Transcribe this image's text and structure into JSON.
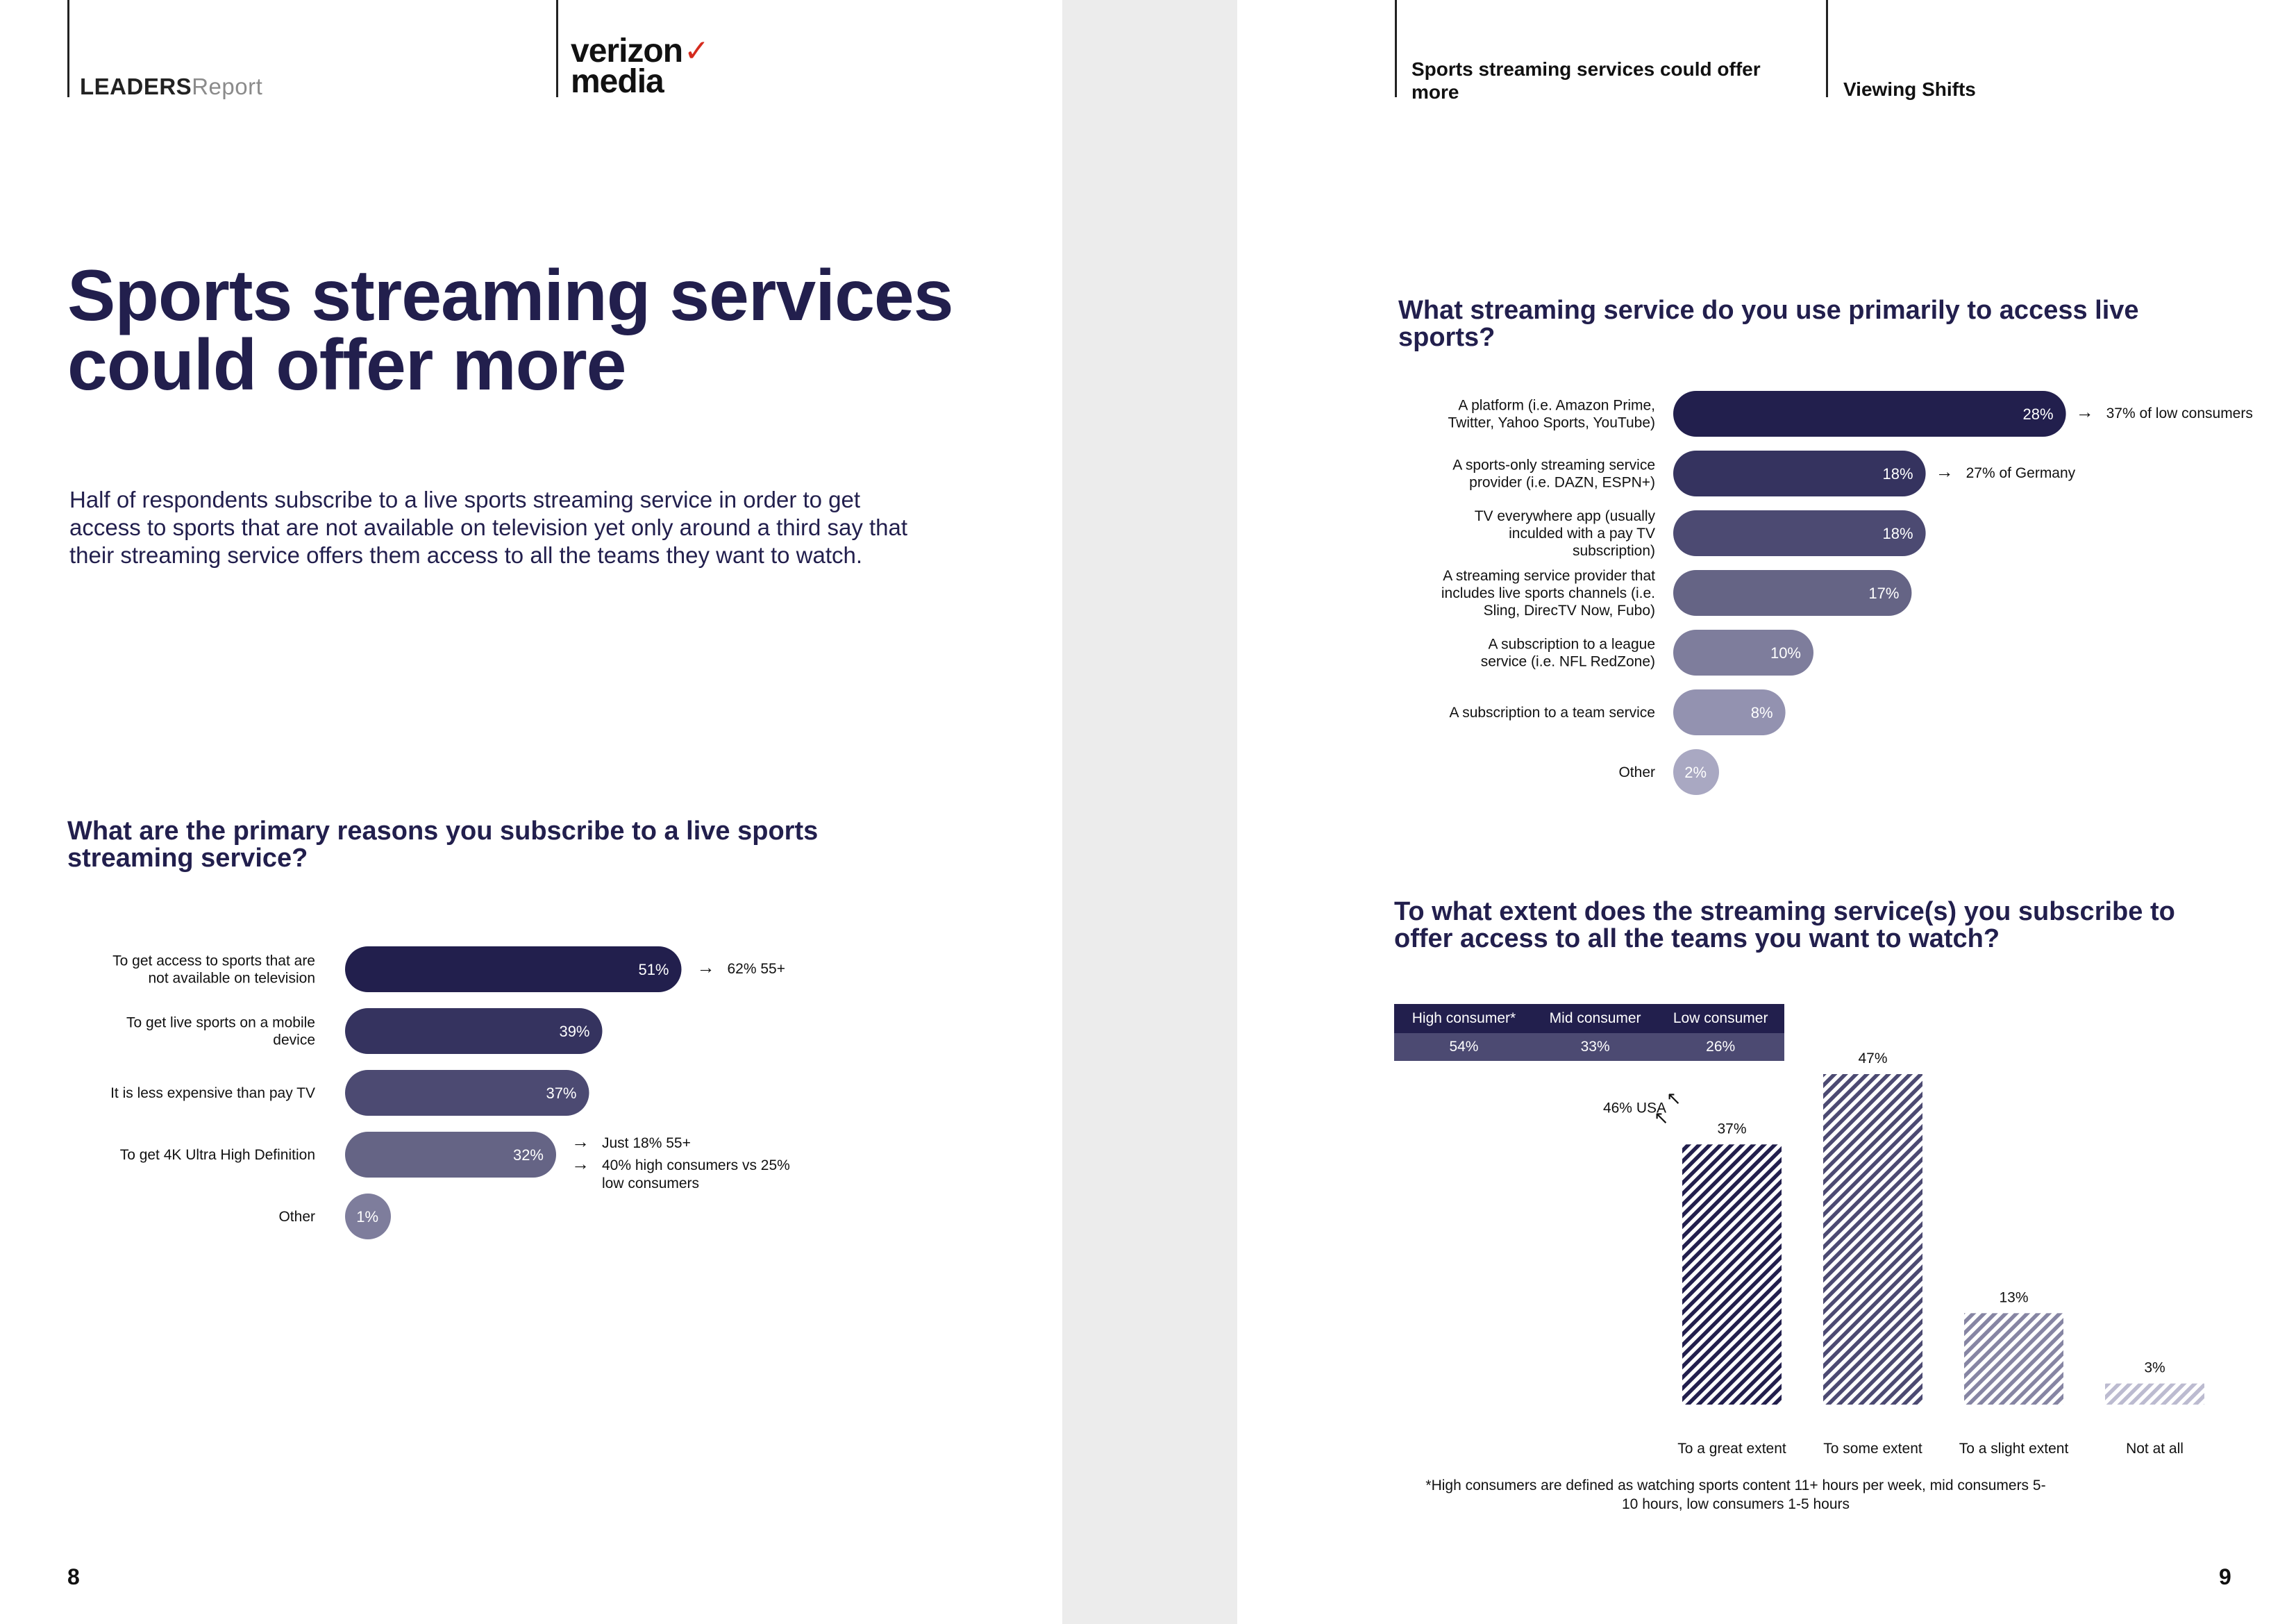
{
  "header": {
    "brand_bold": "LEADERS",
    "brand_light": "Report",
    "partner_line1": "verizon",
    "partner_line2": "media",
    "right_section": "Sports streaming services could offer more",
    "right_chapter": "Viewing Shifts"
  },
  "left": {
    "title": "Sports streaming services could offer more",
    "intro": "Half of respondents subscribe to a live sports streaming service in order to get access to sports that are not available on television yet only around a third say that their streaming service offers them access to all the teams they want to watch.",
    "page_number": "8"
  },
  "right": {
    "page_number": "9",
    "footnote": "*High consumers are defined as watching sports content 11+ hours per week, mid consumers 5-10 hours, low consumers 1-5 hours"
  },
  "colors": {
    "navy": "#221f4d",
    "bar_shades": [
      "#221f4d",
      "#35335f",
      "#4c4a72",
      "#656485",
      "#7e7d9c",
      "#9392b0",
      "#a9a8c2"
    ]
  },
  "chart_data": [
    {
      "type": "bar",
      "orientation": "horizontal",
      "title": "What are the primary reasons you subscribe to a live sports streaming service?",
      "unit": "%",
      "categories": [
        "To get access to sports that are not available on television",
        "To get live sports on a mobile device",
        "It is less expensive than pay TV",
        "To get 4K Ultra High Definition",
        "Other"
      ],
      "category_lines": [
        [
          "To get access to sports that are",
          "not available on television"
        ],
        [
          "To get live sports on a mobile",
          "device"
        ],
        [
          "It is less expensive than pay TV"
        ],
        [
          "To get 4K Ultra High Definition"
        ],
        [
          "Other"
        ]
      ],
      "values": [
        51,
        39,
        37,
        32,
        1
      ],
      "value_labels": [
        "51%",
        "39%",
        "37%",
        "32%",
        "1%"
      ],
      "annotations": [
        {
          "bar_index": 0,
          "arrow": "→",
          "text": "62% 55+"
        },
        {
          "bar_index": 3,
          "arrow": "→",
          "text": "Just 18% 55+"
        },
        {
          "bar_index": 3,
          "arrow": "→",
          "text": "40% high consumers vs 25% low consumers"
        }
      ]
    },
    {
      "type": "bar",
      "orientation": "horizontal",
      "title": "What streaming service do you use primarily to access live sports?",
      "unit": "%",
      "categories": [
        "A platform (i.e. Amazon Prime, Twitter, Yahoo Sports, YouTube)",
        "A sports-only streaming service provider (i.e. DAZN, ESPN+)",
        "TV everywhere app (usually inculded with a pay TV subscription)",
        "A streaming service provider that includes live sports channels (i.e. Sling, DirecTV Now, Fubo)",
        "A subscription to a league service (i.e. NFL RedZone)",
        "A subscription to a team service",
        "Other"
      ],
      "category_lines": [
        [
          "A platform (i.e. Amazon Prime,",
          "Twitter, Yahoo Sports, YouTube)"
        ],
        [
          "A sports-only streaming service",
          "provider (i.e. DAZN, ESPN+)"
        ],
        [
          "TV everywhere app (usually",
          "inculded with a pay TV",
          "subscription)"
        ],
        [
          "A streaming service provider that",
          "includes live sports channels (i.e.",
          "Sling, DirecTV Now, Fubo)"
        ],
        [
          "A subscription to a league",
          "service (i.e. NFL RedZone)"
        ],
        [
          "A subscription to a team service"
        ],
        [
          "Other"
        ]
      ],
      "values": [
        28,
        18,
        18,
        17,
        10,
        8,
        2
      ],
      "value_labels": [
        "28%",
        "18%",
        "18%",
        "17%",
        "10%",
        "8%",
        "2%"
      ],
      "annotations": [
        {
          "bar_index": 0,
          "arrow": "→",
          "text": "37% of low consumers"
        },
        {
          "bar_index": 1,
          "arrow": "→",
          "text": "27% of Germany"
        }
      ]
    },
    {
      "type": "bar",
      "orientation": "vertical",
      "title": "To what extent does the streaming service(s) you subscribe to offer access to all the teams you want to watch?",
      "unit": "%",
      "categories": [
        "To a great extent",
        "To some extent",
        "To a slight extent",
        "Not at all"
      ],
      "values": [
        37,
        47,
        13,
        3
      ],
      "value_labels": [
        "37%",
        "47%",
        "13%",
        "3%"
      ],
      "ylim": [
        0,
        47
      ],
      "fill": "diagonal hatch",
      "bar_colors": [
        "#221f4d",
        "#4c4a72",
        "#8685a3",
        "#bcbbd0"
      ],
      "annotations": [
        {
          "bar_index": 0,
          "arrow": "↖",
          "text": "46% USA"
        }
      ],
      "legend_table": {
        "headers": [
          "High consumer*",
          "Mid consumer",
          "Low consumer"
        ],
        "values": [
          "54%",
          "33%",
          "26%"
        ]
      }
    }
  ]
}
